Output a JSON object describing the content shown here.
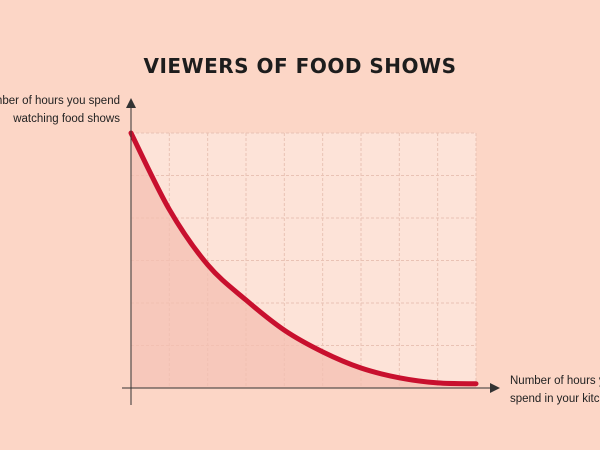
{
  "chart_data": {
    "type": "line",
    "title": "VIEWERS OF FOOD SHOWS",
    "ylabel": [
      "Number of hours you spend",
      "watching food shows"
    ],
    "xlabel": [
      "Number of hours you",
      "spend in your kitchen"
    ],
    "x": [
      0,
      1,
      2,
      3,
      4,
      5,
      6,
      7,
      8,
      9
    ],
    "series": [
      {
        "color": "#c8102e",
        "values": [
          6,
          4.2,
          2.9,
          2.07,
          1.36,
          0.85,
          0.47,
          0.24,
          0.12,
          0.1
        ]
      }
    ],
    "xlim": [
      0,
      9
    ],
    "ylim": [
      0,
      6
    ],
    "xticks": [
      0,
      1,
      2,
      3,
      4,
      5,
      6,
      7,
      8,
      9
    ],
    "yticks": [
      0,
      1,
      2,
      3,
      4,
      5,
      6
    ],
    "grid": true,
    "fill_under": true
  }
}
